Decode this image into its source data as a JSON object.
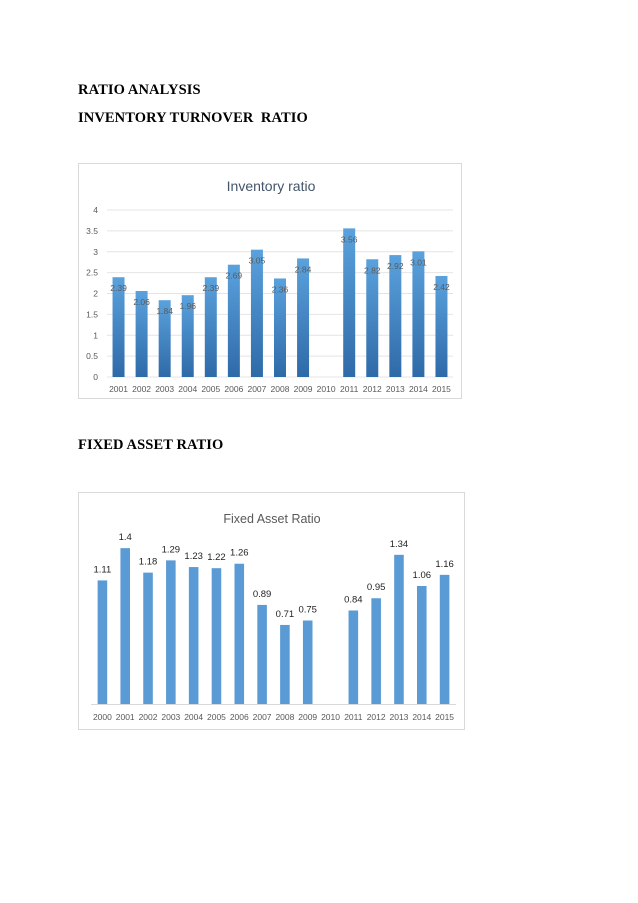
{
  "document": {
    "heading_main": "RATIO ANALYSIS",
    "heading_inventory": "INVENTORY TURNOVER  RATIO",
    "heading_fixed": "FIXED ASSET RATIO"
  },
  "colors": {
    "inventory_bar_top": "#5aa2dd",
    "inventory_bar_bottom": "#2f6aa8",
    "fixed_bar": "#5b9bd5",
    "gridline": "#e4e4e4",
    "inventory_title": "#44546a",
    "fixed_title": "#595959"
  },
  "chart_data": [
    {
      "type": "bar",
      "title": "Inventory ratio",
      "categories": [
        "2001",
        "2002",
        "2003",
        "2004",
        "2005",
        "2006",
        "2007",
        "2008",
        "2009",
        "2010",
        "2011",
        "2012",
        "2013",
        "2014",
        "2015"
      ],
      "values": [
        2.39,
        2.06,
        1.84,
        1.96,
        2.39,
        2.69,
        3.05,
        2.36,
        2.84,
        null,
        3.56,
        2.82,
        2.92,
        3.01,
        2.42
      ],
      "data_labels": [
        "2.39",
        "2.06",
        "1.84",
        "1.96",
        "2.39",
        "2.69",
        "3.05",
        "2.36",
        "2.84",
        "",
        "3.56",
        "2.82",
        "2.92",
        "3.01",
        "2.42"
      ],
      "ylim": [
        0,
        4
      ],
      "yticks": [
        "0",
        "0.5",
        "1",
        "1.5",
        "2",
        "2.5",
        "3",
        "3.5",
        "4"
      ],
      "grid": true,
      "legend": "none"
    },
    {
      "type": "bar",
      "title": "Fixed Asset Ratio",
      "categories": [
        "2000",
        "2001",
        "2002",
        "2003",
        "2004",
        "2005",
        "2006",
        "2007",
        "2008",
        "2009",
        "2010",
        "2011",
        "2012",
        "2013",
        "2014",
        "2015"
      ],
      "values": [
        1.11,
        1.4,
        1.18,
        1.29,
        1.23,
        1.22,
        1.26,
        0.89,
        0.71,
        0.75,
        null,
        0.84,
        0.95,
        1.34,
        1.06,
        1.16
      ],
      "data_labels": [
        "1.11",
        "1.4",
        "1.18",
        "1.29",
        "1.23",
        "1.22",
        "1.26",
        "0.89",
        "0.71",
        "0.75",
        "",
        "0.84",
        "0.95",
        "1.34",
        "1.06",
        "1.16"
      ],
      "ylim": [
        0,
        1.5
      ],
      "grid": false,
      "legend": "none"
    }
  ]
}
